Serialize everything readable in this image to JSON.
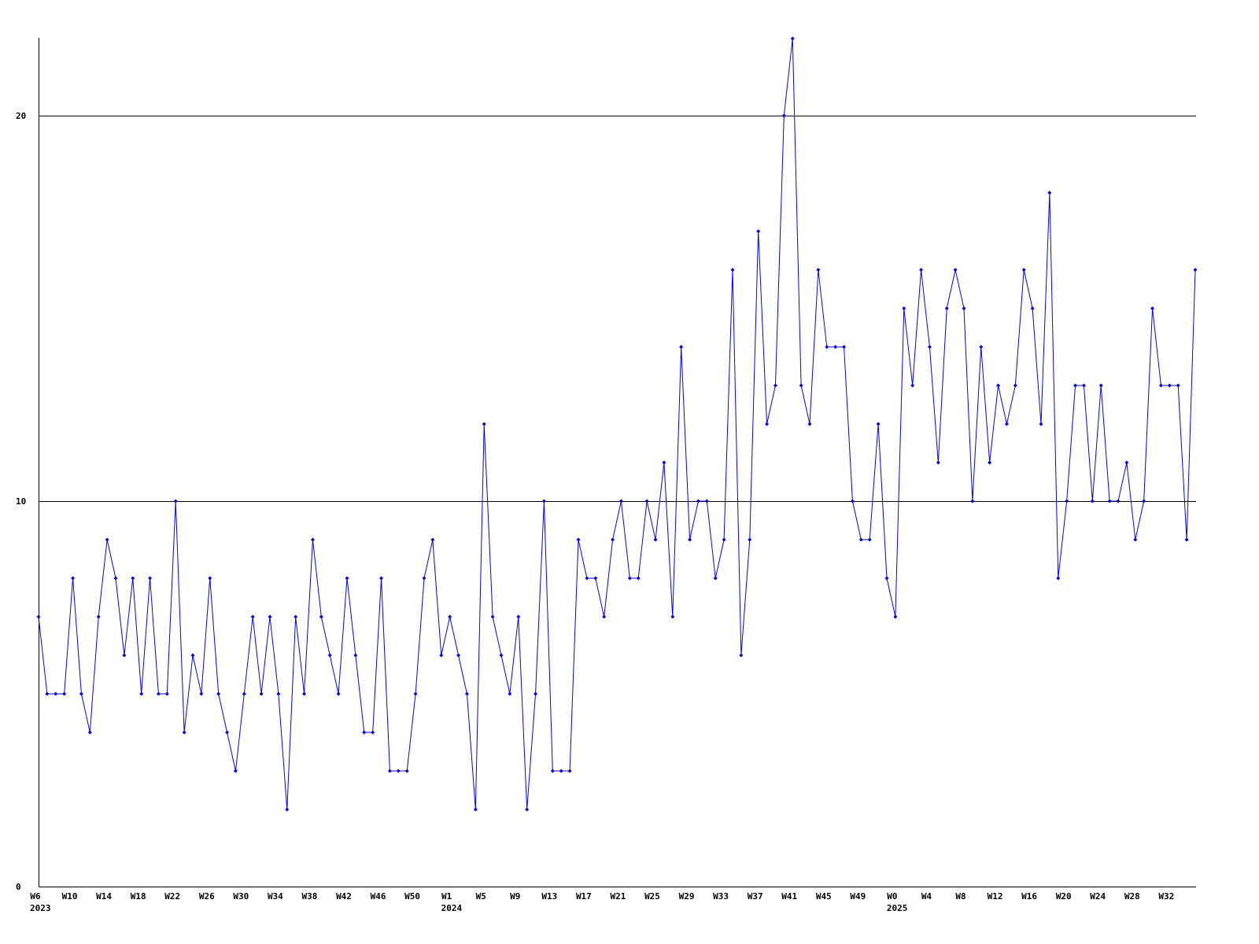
{
  "chart_data": {
    "type": "line",
    "categories": [
      "W6",
      null,
      null,
      null,
      "W10",
      null,
      null,
      null,
      "W14",
      null,
      null,
      null,
      "W18",
      null,
      null,
      null,
      "W22",
      null,
      null,
      null,
      "W26",
      null,
      null,
      null,
      "W30",
      null,
      null,
      null,
      "W34",
      null,
      null,
      null,
      "W38",
      null,
      null,
      null,
      "W42",
      null,
      null,
      null,
      "W46",
      null,
      null,
      null,
      "W50",
      null,
      null,
      null,
      "W1",
      null,
      null,
      null,
      "W5",
      null,
      null,
      null,
      "W9",
      null,
      null,
      null,
      "W13",
      null,
      null,
      null,
      "W17",
      null,
      null,
      null,
      "W21",
      null,
      null,
      null,
      "W25",
      null,
      null,
      null,
      "W29",
      null,
      null,
      null,
      "W33",
      null,
      null,
      null,
      "W37",
      null,
      null,
      null,
      "W41",
      null,
      null,
      null,
      "W45",
      null,
      null,
      null,
      "W49",
      null,
      null,
      null,
      "W0",
      null,
      null,
      null,
      "W4",
      null,
      null,
      null,
      "W8",
      null,
      null,
      null,
      "W12",
      null,
      null,
      null,
      "W16",
      null,
      null,
      null,
      "W20",
      null,
      null,
      null,
      "W24",
      null,
      null,
      null,
      "W28",
      null,
      null,
      null,
      "W32",
      null,
      null,
      null
    ],
    "year_labels": [
      "2023",
      null,
      null,
      null,
      null,
      null,
      null,
      null,
      null,
      null,
      null,
      null,
      null,
      null,
      null,
      null,
      null,
      null,
      null,
      null,
      null,
      null,
      null,
      null,
      null,
      null,
      null,
      null,
      null,
      null,
      null,
      null,
      null,
      null,
      null,
      null,
      null,
      null,
      null,
      null,
      null,
      null,
      null,
      null,
      null,
      null,
      null,
      null,
      "2024",
      null,
      null,
      null,
      null,
      null,
      null,
      null,
      null,
      null,
      null,
      null,
      null,
      null,
      null,
      null,
      null,
      null,
      null,
      null,
      null,
      null,
      null,
      null,
      null,
      null,
      null,
      null,
      null,
      null,
      null,
      null,
      null,
      null,
      null,
      null,
      null,
      null,
      null,
      null,
      null,
      null,
      null,
      null,
      null,
      null,
      null,
      null,
      null,
      null,
      null,
      null,
      "2025",
      null,
      null,
      null,
      null,
      null,
      null,
      null,
      null,
      null,
      null,
      null,
      null,
      null,
      null,
      null,
      null,
      null,
      null,
      null,
      null,
      null,
      null,
      null,
      null,
      null,
      null,
      null,
      null,
      null,
      null,
      null,
      null,
      null,
      null,
      null
    ],
    "series": [
      {
        "color": "#0000ff",
        "values": [
          7,
          5,
          5,
          5,
          8,
          5,
          4,
          7,
          9,
          8,
          6,
          8,
          5,
          8,
          5,
          5,
          10,
          4,
          6,
          5,
          8,
          5,
          4,
          3,
          5,
          7,
          5,
          7,
          5,
          2,
          7,
          5,
          9,
          7,
          6,
          5,
          8,
          6,
          4,
          4,
          8,
          3,
          3,
          3,
          5,
          8,
          9,
          6,
          7,
          6,
          5,
          2,
          12,
          7,
          6,
          5,
          7,
          2,
          5,
          10,
          3,
          3,
          3,
          9,
          8,
          8,
          7,
          9,
          10,
          8,
          8,
          10,
          9,
          11,
          7,
          14,
          9,
          10,
          10,
          8,
          9,
          16,
          6,
          9,
          17,
          12,
          13,
          20,
          22,
          13,
          12,
          16,
          14,
          14,
          14,
          10,
          9,
          9,
          12,
          8,
          7,
          15,
          13,
          16,
          14,
          11,
          15,
          16,
          15,
          10,
          14,
          11,
          13,
          12,
          13,
          16,
          15,
          12,
          18,
          8,
          10,
          13,
          13,
          10,
          13,
          10,
          10,
          11,
          9,
          10,
          15,
          13,
          13,
          13,
          9,
          16
        ]
      }
    ],
    "ylim": [
      0,
      22
    ],
    "yticks": [
      0,
      10,
      20
    ],
    "grid": true
  }
}
